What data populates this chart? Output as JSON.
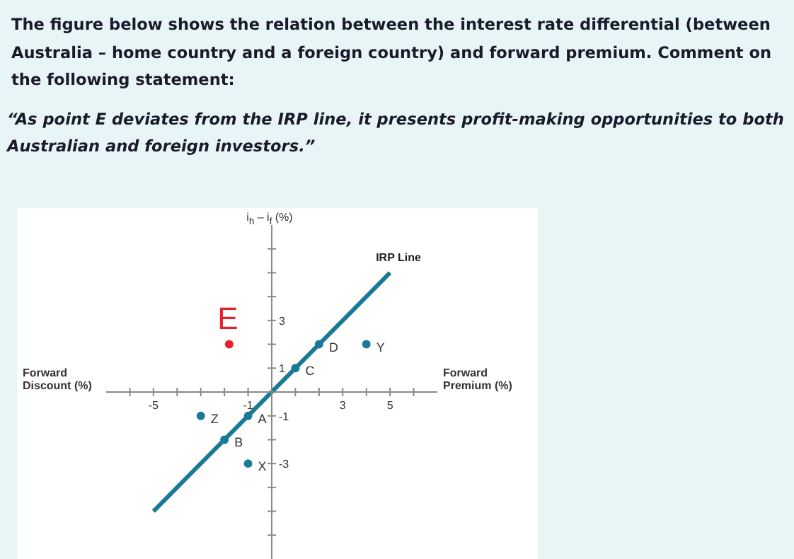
{
  "chart_data": {
    "type": "scatter",
    "title": "The figure below shows the relation between the interest rate differential (between Australia – home country and a foreign country) and forward premium. Comment on the following statement:",
    "subtitle": "“As point E deviates from the IRP line, it presents profit-making opportunities to both Australian and foreign investors.”",
    "xlabel": "Forward Premium (%)",
    "ylabel": "i$_{h}$ – i$_{f}$ (%)",
    "annotations": [
      "Forward Discount (%)"
    ],
    "xlim": [
      -7,
      7
    ],
    "ylim": [
      -7,
      7
    ],
    "xticks": [
      {
        "value": -6,
        "label": null
      },
      -5,
      {
        "value": -4,
        "label": null
      },
      {
        "value": -3,
        "label": null
      },
      {
        "value": -2,
        "label": null
      },
      -1,
      {
        "value": 0,
        "label": null
      },
      {
        "value": 1,
        "label": null
      },
      {
        "value": 2,
        "label": null
      },
      3,
      {
        "value": 4,
        "label": null
      },
      5,
      {
        "value": 6,
        "label": null
      }
    ],
    "yticks": [
      {
        "value": -6,
        "label": null
      },
      {
        "value": -5,
        "label": null
      },
      {
        "value": -4,
        "label": null
      },
      -3,
      {
        "value": -2,
        "label": null
      },
      -1,
      {
        "value": 0,
        "label": null
      },
      1,
      {
        "value": 2,
        "label": null
      },
      3,
      {
        "value": 4,
        "label": null
      },
      {
        "value": 5,
        "label": null
      },
      {
        "value": 6,
        "label": null
      }
    ],
    "grid": false,
    "legend": false,
    "series": [
      {
        "name": "IRP Line",
        "type": "line",
        "x": [
          -5,
          5
        ],
        "values": [
          -5,
          5
        ],
        "color": "#1a7a96",
        "marker": "none"
      },
      {
        "type": "scatter",
        "x": [
          -1,
          -2,
          1,
          2,
          4,
          -3,
          -1
        ],
        "values": [
          -1,
          -2,
          1,
          2,
          2,
          -1,
          -3
        ],
        "value_labels": [
          "A",
          "B",
          "C",
          "D",
          "Y",
          "Z",
          "X"
        ],
        "color": "#1a7a96",
        "marker": "circle"
      },
      {
        "type": "scatter",
        "x": [
          -1.8
        ],
        "values": [
          2
        ],
        "value_labels": [
          "E"
        ],
        "color": "#e8202a",
        "marker": "circle"
      }
    ]
  }
}
